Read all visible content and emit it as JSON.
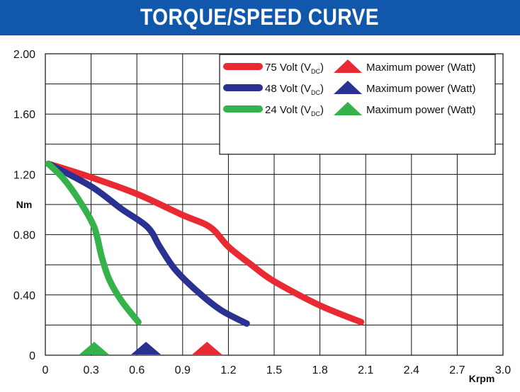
{
  "title": "TORQUE/SPEED CURVE",
  "colors": {
    "header": "#1158ad",
    "red": "#ea2a33",
    "blue": "#2b3191",
    "green": "#35b24a"
  },
  "chart_data": {
    "type": "line",
    "title": "TORQUE/SPEED CURVE",
    "xlabel": "Krpm",
    "ylabel": "Nm",
    "xlim": [
      0,
      3.0
    ],
    "ylim": [
      0,
      2.0
    ],
    "grid": true,
    "legend_position": "top-right",
    "x_ticks": [
      "0",
      "0.3",
      "0.6",
      "0.9",
      "1.2",
      "1.5",
      "1.8",
      "2.1",
      "2.4",
      "2.7",
      "3.0"
    ],
    "y_ticks": [
      "0",
      "0.40",
      "0.80",
      "1.20",
      "1.60",
      "2.00"
    ],
    "series": [
      {
        "name": "75 Volt (VDC)",
        "label_main": "75 Volt (V",
        "label_sub": "DC",
        "label_tail": ")",
        "marker_label": "Maximum power (Watt)",
        "color": "#ea2a33",
        "x": [
          0.02,
          0.3,
          0.6,
          0.9,
          1.08,
          1.2,
          1.35,
          1.5,
          1.8,
          2.07
        ],
        "y": [
          1.27,
          1.18,
          1.07,
          0.93,
          0.85,
          0.72,
          0.6,
          0.49,
          0.33,
          0.22
        ],
        "max_power_x": 1.06,
        "max_power_y": 0.0
      },
      {
        "name": "48 Volt (VDC)",
        "label_main": "48 Volt (V",
        "label_sub": "DC",
        "label_tail": ")",
        "marker_label": "Maximum power (Watt)",
        "color": "#2b3191",
        "x": [
          0.02,
          0.3,
          0.5,
          0.67,
          0.75,
          0.85,
          1.0,
          1.15,
          1.32
        ],
        "y": [
          1.27,
          1.12,
          0.97,
          0.85,
          0.72,
          0.57,
          0.42,
          0.3,
          0.21
        ],
        "max_power_x": 0.66,
        "max_power_y": 0.0
      },
      {
        "name": "24 Volt (VDC)",
        "label_main": "24 Volt (V",
        "label_sub": "DC",
        "label_tail": ")",
        "marker_label": "Maximum power (Watt)",
        "color": "#35b24a",
        "x": [
          0.02,
          0.12,
          0.22,
          0.32,
          0.37,
          0.42,
          0.5,
          0.61
        ],
        "y": [
          1.27,
          1.17,
          1.03,
          0.85,
          0.65,
          0.5,
          0.36,
          0.22
        ],
        "max_power_x": 0.32,
        "max_power_y": 0.0
      }
    ]
  }
}
